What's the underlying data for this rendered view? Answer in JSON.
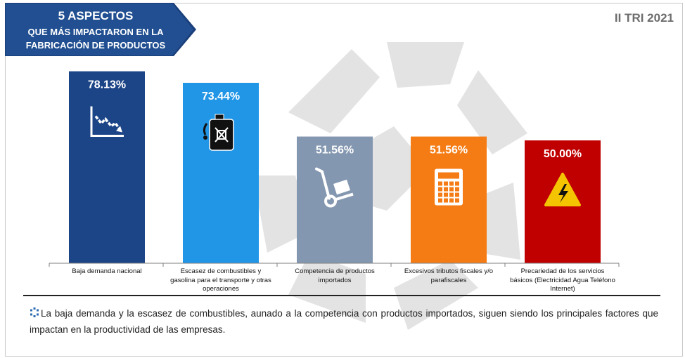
{
  "header": {
    "title_line1": "5 ASPECTOS",
    "title_line2": "QUE MÁS IMPACTARON EN LA",
    "title_line3": "FABRICACIÓN DE PRODUCTOS",
    "period": "II TRI 2021"
  },
  "colors": {
    "banner": "#1f4e8c",
    "watermark": "#d9d9d9"
  },
  "chart_data": {
    "type": "bar",
    "title": "",
    "xlabel": "",
    "ylabel": "",
    "ylim": [
      0,
      100
    ],
    "grid": false,
    "legend": "none",
    "categories": [
      "Baja demanda nacional",
      "Escasez de combustibles y gasolina para el transporte y otras operaciones",
      "Competencia de productos importados",
      "Excesivos tributos fiscales y/o parafiscales",
      "Precariedad de los servicios básicos (Electricidad Agua Teléfono Internet)"
    ],
    "values": [
      78.13,
      73.44,
      51.56,
      51.56,
      50.0
    ],
    "value_labels": [
      "78.13%",
      "73.44%",
      "51.56%",
      "51.56%",
      "50.00%"
    ],
    "bar_colors": [
      "#1c4587",
      "#2196e6",
      "#8497b0",
      "#f57c14",
      "#c00000"
    ],
    "bar_icons": [
      "declining-trend-icon",
      "fuel-can-icon",
      "hand-truck-icon",
      "calculator-icon",
      "high-voltage-warning-icon"
    ]
  },
  "footnote": {
    "text": "La baja demanda y la escasez de combustibles, aunado a la competencia con productos importados, siguen siendo los principales factores que impactan en la productividad de las empresas."
  }
}
